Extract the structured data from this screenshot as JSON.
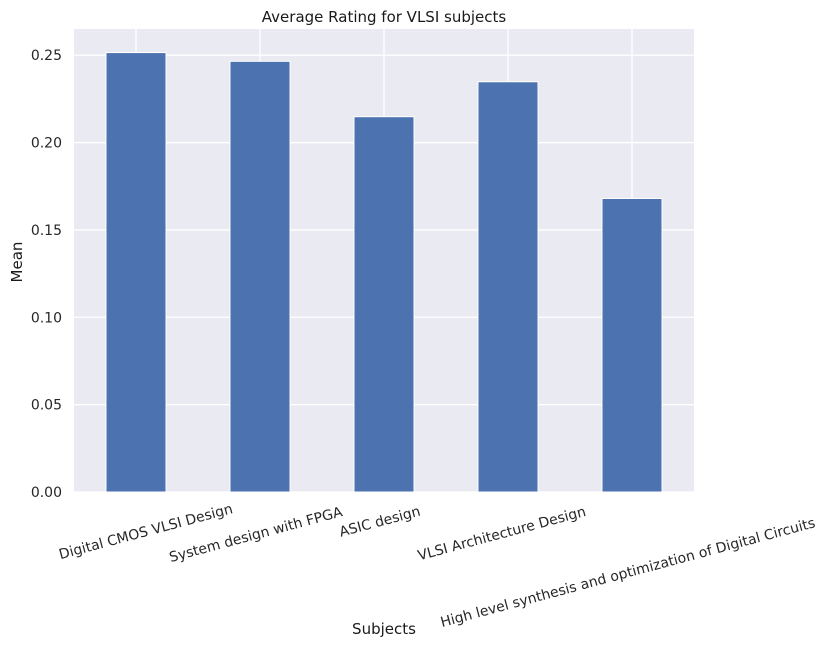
{
  "chart_data": {
    "type": "bar",
    "title": "Average Rating for VLSI subjects",
    "xlabel": "Subjects",
    "ylabel": "Mean",
    "categories": [
      "Digital CMOS VLSI Design",
      "System design with FPGA",
      "ASIC design",
      "VLSI Architecture Design",
      "High level synthesis and optimization of Digital Circuits"
    ],
    "values": [
      0.2515,
      0.2465,
      0.2148,
      0.2348,
      0.168
    ],
    "ylim": [
      0,
      0.265
    ],
    "yticks": [
      "0.00",
      "0.05",
      "0.10",
      "0.15",
      "0.20",
      "0.25"
    ],
    "bar_color": "#4c72b0",
    "background_color": "#eaeaf2",
    "grid": true
  }
}
